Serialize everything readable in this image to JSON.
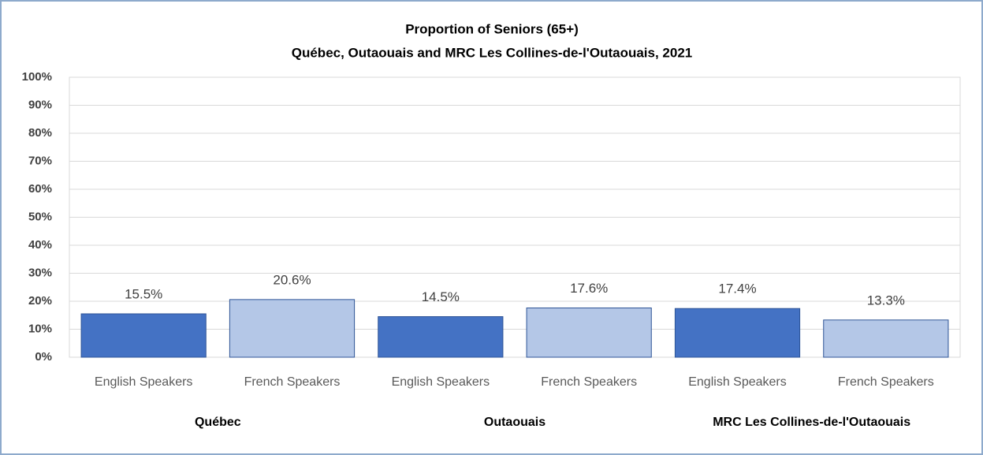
{
  "chart_data": {
    "type": "bar",
    "title": "Proportion of Seniors (65+)",
    "subtitle": "Québec, Outaouais and MRC Les Collines-de-l'Outaouais,  2021",
    "categories": [
      "English Speakers",
      "French Speakers",
      "English Speakers",
      "French Speakers",
      "English Speakers",
      "French Speakers"
    ],
    "groups": [
      "Québec",
      "Outaouais",
      "MRC Les Collines-de-l'Outaouais"
    ],
    "values": [
      15.5,
      20.6,
      14.5,
      17.6,
      17.4,
      13.3
    ],
    "value_labels": [
      "15.5%",
      "20.6%",
      "14.5%",
      "17.6%",
      "17.4%",
      "13.3%"
    ],
    "colors": [
      "#4472c4",
      "#b4c7e7",
      "#4472c4",
      "#b4c7e7",
      "#4472c4",
      "#b4c7e7"
    ],
    "ylim": [
      0,
      100
    ],
    "yticks": [
      {
        "value": 0,
        "label": "0%"
      },
      {
        "value": 10,
        "label": "10%"
      },
      {
        "value": 20,
        "label": "20%"
      },
      {
        "value": 30,
        "label": "30%"
      },
      {
        "value": 40,
        "label": "40%"
      },
      {
        "value": 50,
        "label": "50%"
      },
      {
        "value": 60,
        "label": "60%"
      },
      {
        "value": 70,
        "label": "70%"
      },
      {
        "value": 80,
        "label": "80%"
      },
      {
        "value": 90,
        "label": "90%"
      },
      {
        "value": 100,
        "label": "100%"
      }
    ],
    "grid": true
  }
}
